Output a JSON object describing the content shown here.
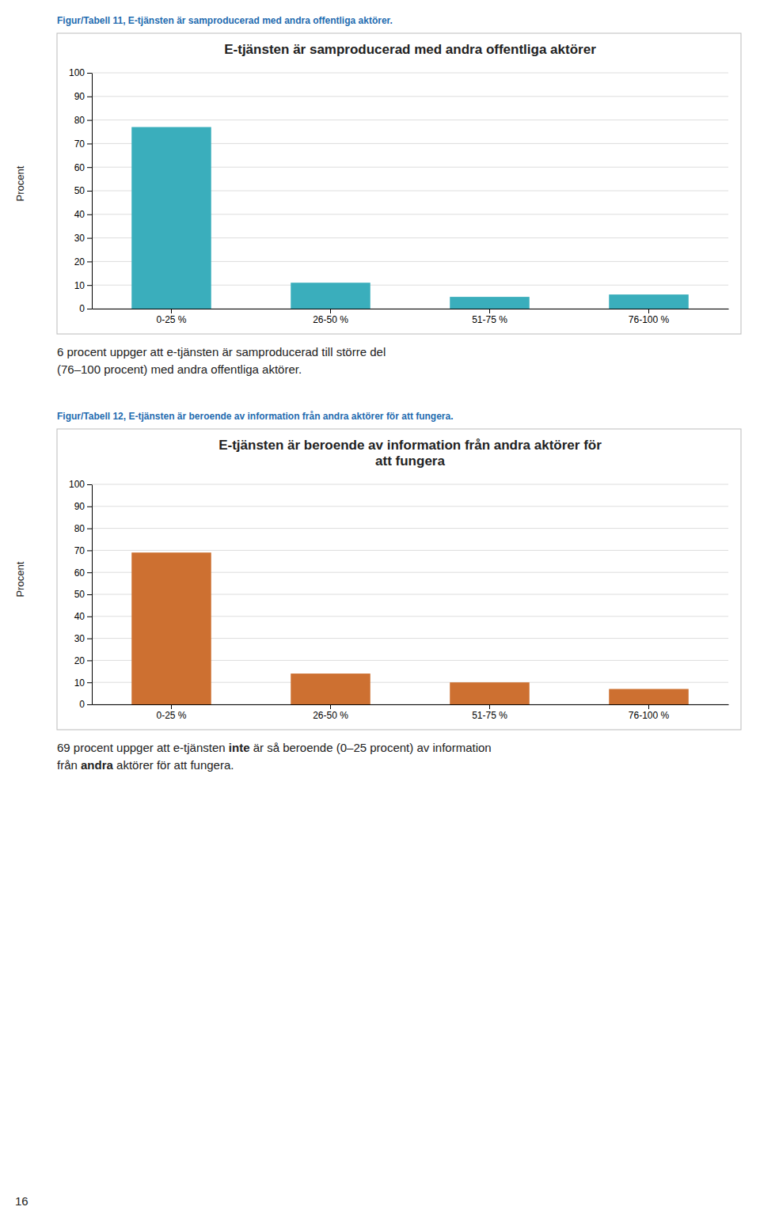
{
  "chart_data": [
    {
      "type": "bar",
      "title": "E-tjänsten är samproducerad med andra offentliga aktörer",
      "categories": [
        "0-25 %",
        "26-50 %",
        "51-75 %",
        "76-100 %"
      ],
      "values": [
        77,
        11,
        5,
        6
      ],
      "color": "#3AAEBC",
      "ylim": [
        0,
        100
      ],
      "yticks": [
        0,
        10,
        20,
        30,
        40,
        50,
        60,
        70,
        80,
        90,
        100
      ],
      "ylabel": "Procent",
      "grid": true,
      "annotations": [
        "Figur/Tabell 11, E-tjänsten är samproducerad med andra offentliga aktörer.",
        "6 procent uppger att e-tjänsten är samproducerad till större del",
        "(76–100 procent) med andra offentliga aktörer."
      ]
    },
    {
      "type": "bar",
      "title": "E-tjänsten är beroende av information från andra aktörer för\natt fungera",
      "categories": [
        "0-25 %",
        "26-50 %",
        "51-75 %",
        "76-100 %"
      ],
      "values": [
        69,
        14,
        10,
        7
      ],
      "color": "#CD7031",
      "ylim": [
        0,
        100
      ],
      "yticks": [
        0,
        10,
        20,
        30,
        40,
        50,
        60,
        70,
        80,
        90,
        100
      ],
      "ylabel": "Procent",
      "grid": true,
      "annotations": [
        "Figur/Tabell 12, E-tjänsten är beroende av information från andra aktörer för att fungera.",
        [
          "69 procent uppger att e-tjänsten ",
          "inte",
          " är så beroende (0–25 procent) av information"
        ],
        [
          "från ",
          "andra",
          " aktörer för att fungera."
        ]
      ]
    }
  ],
  "annotations": [
    "16"
  ]
}
